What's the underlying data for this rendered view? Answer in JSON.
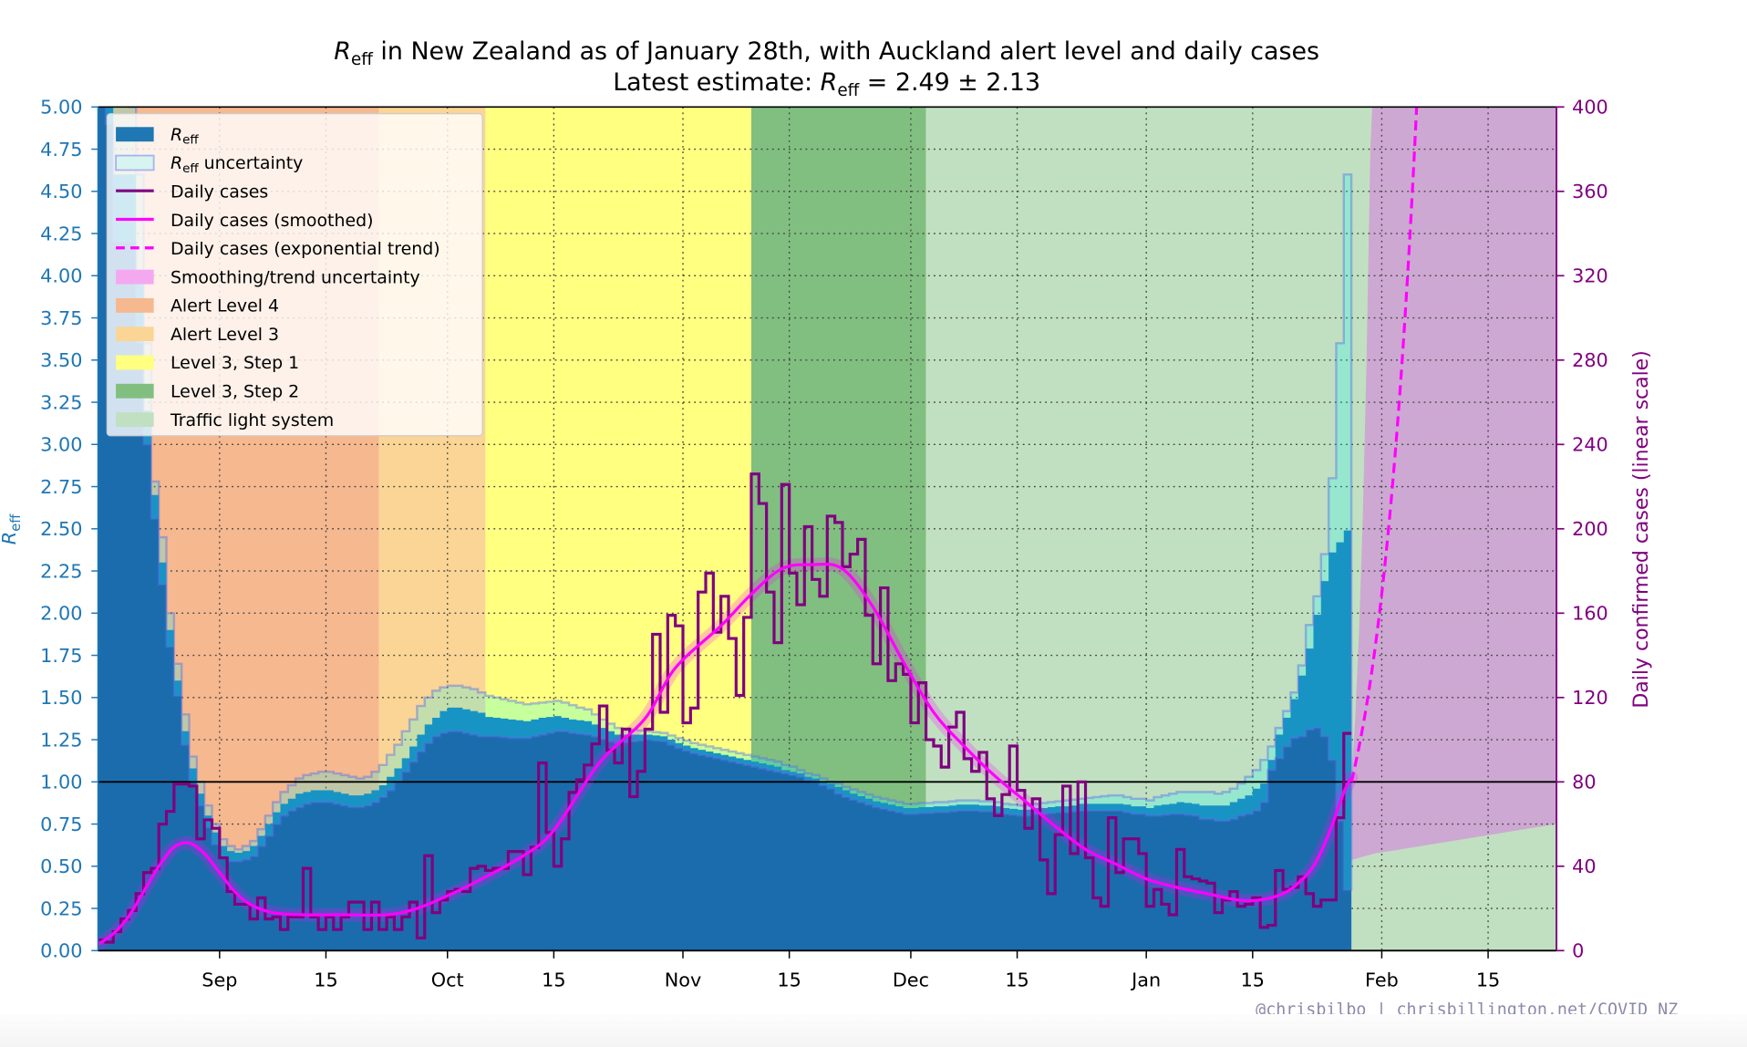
{
  "colors": {
    "reff": "#1f77b4",
    "reff_uncertainty_fill": "rgba(0,255,255,0.22)",
    "reff_uncertainty_edge": "rgba(90,110,230,0.45)",
    "daily_cases": "#800080",
    "smoothed": "#ff00ff",
    "smoothing_uncertainty": "rgba(255,0,255,0.22)",
    "left_axis": "#1f77b4",
    "right_axis": "#800080",
    "footer": "#8a8aaa"
  },
  "chart_data": {
    "type": "line",
    "title": {
      "symbol": "R",
      "sub": "eff",
      "text": " in New Zealand as of January 28th, with Auckland alert level and daily cases"
    },
    "subtitle": {
      "text": "Latest estimate: ",
      "symbol": "R",
      "sub": "eff",
      "value": " = 2.49 ± 2.13"
    },
    "x_axis": {
      "unit": "days since Aug 16",
      "range": [
        0,
        192
      ],
      "ticks": [
        {
          "day": 16,
          "label": "Sep"
        },
        {
          "day": 30,
          "label": "15"
        },
        {
          "day": 46,
          "label": "Oct"
        },
        {
          "day": 60,
          "label": "15"
        },
        {
          "day": 77,
          "label": "Nov"
        },
        {
          "day": 91,
          "label": "15"
        },
        {
          "day": 107,
          "label": "Dec"
        },
        {
          "day": 121,
          "label": "15"
        },
        {
          "day": 138,
          "label": "Jan"
        },
        {
          "day": 152,
          "label": "15"
        },
        {
          "day": 169,
          "label": "Feb"
        },
        {
          "day": 183,
          "label": "15"
        }
      ],
      "grid": true
    },
    "y_left": {
      "label_symbol": "R",
      "label_sub": "eff",
      "range": [
        0,
        5
      ],
      "ticks": [
        "0.00",
        "0.25",
        "0.50",
        "0.75",
        "1.00",
        "1.25",
        "1.50",
        "1.75",
        "2.00",
        "2.25",
        "2.50",
        "2.75",
        "3.00",
        "3.25",
        "3.50",
        "3.75",
        "4.00",
        "4.25",
        "4.50",
        "4.75",
        "5.00"
      ],
      "grid": true
    },
    "y_right": {
      "label": "Daily confirmed cases (linear scale)",
      "range": [
        0,
        400
      ],
      "ticks": [
        "0",
        "40",
        "80",
        "120",
        "160",
        "200",
        "240",
        "280",
        "320",
        "360",
        "400"
      ]
    },
    "reference_line_reff": 1.0,
    "bands": [
      {
        "name": "Alert Level 4",
        "start_day": 0,
        "end_day": 37,
        "color": "#f6b88f"
      },
      {
        "name": "Alert Level 3",
        "start_day": 37,
        "end_day": 51,
        "color": "#fad595"
      },
      {
        "name": "Level 3, Step 1",
        "start_day": 51,
        "end_day": 86,
        "color": "#ffff80"
      },
      {
        "name": "Level 3, Step 2",
        "start_day": 86,
        "end_day": 109,
        "color": "#80bf80"
      },
      {
        "name": "Traffic light system",
        "start_day": 109,
        "end_day": 192,
        "color": "#c1e0c1"
      }
    ],
    "reff": {
      "value": [
        5.0,
        5.0,
        4.6,
        4.6,
        4.6,
        4.0,
        3.2,
        2.7,
        2.3,
        1.9,
        1.6,
        1.3,
        1.08,
        0.93,
        0.8,
        0.7,
        0.62,
        0.59,
        0.58,
        0.59,
        0.62,
        0.68,
        0.75,
        0.82,
        0.87,
        0.9,
        0.93,
        0.94,
        0.95,
        0.95,
        0.95,
        0.94,
        0.93,
        0.92,
        0.92,
        0.93,
        0.95,
        0.98,
        1.03,
        1.08,
        1.14,
        1.21,
        1.28,
        1.34,
        1.38,
        1.42,
        1.44,
        1.44,
        1.43,
        1.42,
        1.41,
        1.385,
        1.38,
        1.375,
        1.37,
        1.365,
        1.36,
        1.37,
        1.38,
        1.385,
        1.39,
        1.38,
        1.37,
        1.365,
        1.36,
        1.34,
        1.32,
        1.3,
        1.28,
        1.28,
        1.28,
        1.28,
        1.28,
        1.275,
        1.27,
        1.25,
        1.23,
        1.215,
        1.2,
        1.19,
        1.18,
        1.17,
        1.16,
        1.15,
        1.14,
        1.13,
        1.12,
        1.11,
        1.1,
        1.09,
        1.07,
        1.06,
        1.05,
        1.03,
        1.02,
        1.0,
        0.99,
        0.97,
        0.95,
        0.93,
        0.915,
        0.9,
        0.885,
        0.875,
        0.865,
        0.855,
        0.845,
        0.845,
        0.85,
        0.85,
        0.855,
        0.855,
        0.86,
        0.865,
        0.865,
        0.865,
        0.86,
        0.86,
        0.855,
        0.845,
        0.84,
        0.835,
        0.835,
        0.845,
        0.845,
        0.85,
        0.855,
        0.855,
        0.86,
        0.87,
        0.87,
        0.87,
        0.87,
        0.87,
        0.87,
        0.865,
        0.855,
        0.855,
        0.845,
        0.86,
        0.865,
        0.87,
        0.88,
        0.875,
        0.87,
        0.86,
        0.86,
        0.86,
        0.86,
        0.88,
        0.9,
        0.92,
        0.96,
        0.99,
        1.13,
        1.28,
        1.38,
        1.49,
        1.63,
        1.79,
        1.99,
        2.19,
        2.36,
        2.42,
        2.49
      ],
      "lower": [
        5.0,
        4.9,
        4.2,
        4.2,
        4.2,
        3.6,
        3.0,
        2.56,
        2.17,
        1.8,
        1.51,
        1.22,
        1.0,
        0.86,
        0.73,
        0.63,
        0.55,
        0.53,
        0.53,
        0.54,
        0.56,
        0.62,
        0.68,
        0.75,
        0.8,
        0.83,
        0.85,
        0.87,
        0.88,
        0.88,
        0.88,
        0.87,
        0.86,
        0.85,
        0.85,
        0.86,
        0.88,
        0.91,
        0.95,
        1.0,
        1.06,
        1.12,
        1.18,
        1.23,
        1.27,
        1.29,
        1.3,
        1.3,
        1.29,
        1.28,
        1.27,
        1.27,
        1.27,
        1.265,
        1.26,
        1.26,
        1.26,
        1.27,
        1.28,
        1.29,
        1.3,
        1.3,
        1.29,
        1.285,
        1.28,
        1.27,
        1.255,
        1.24,
        1.23,
        1.235,
        1.24,
        1.245,
        1.25,
        1.245,
        1.24,
        1.22,
        1.2,
        1.185,
        1.17,
        1.16,
        1.15,
        1.14,
        1.13,
        1.12,
        1.11,
        1.1,
        1.09,
        1.08,
        1.07,
        1.06,
        1.05,
        1.04,
        1.03,
        1.01,
        1.0,
        0.98,
        0.96,
        0.93,
        0.91,
        0.895,
        0.88,
        0.865,
        0.85,
        0.84,
        0.83,
        0.82,
        0.81,
        0.81,
        0.815,
        0.815,
        0.82,
        0.82,
        0.825,
        0.83,
        0.83,
        0.83,
        0.825,
        0.825,
        0.82,
        0.81,
        0.805,
        0.8,
        0.8,
        0.81,
        0.81,
        0.815,
        0.82,
        0.82,
        0.825,
        0.83,
        0.83,
        0.83,
        0.83,
        0.83,
        0.83,
        0.82,
        0.81,
        0.81,
        0.8,
        0.8,
        0.805,
        0.81,
        0.81,
        0.805,
        0.8,
        0.78,
        0.78,
        0.77,
        0.77,
        0.78,
        0.8,
        0.81,
        0.83,
        0.88,
        1.07,
        1.14,
        1.21,
        1.26,
        1.27,
        1.31,
        1.32,
        1.27,
        1.13,
        0.77,
        0.36
      ],
      "upper": [
        5.2,
        5.2,
        5.2,
        5.2,
        5.0,
        4.6,
        3.6,
        2.78,
        2.45,
        2.0,
        1.7,
        1.4,
        1.15,
        1.0,
        0.86,
        0.75,
        0.66,
        0.62,
        0.6,
        0.62,
        0.65,
        0.72,
        0.8,
        0.88,
        0.94,
        0.98,
        1.02,
        1.04,
        1.05,
        1.06,
        1.06,
        1.05,
        1.04,
        1.03,
        1.02,
        1.03,
        1.06,
        1.1,
        1.16,
        1.22,
        1.3,
        1.37,
        1.45,
        1.5,
        1.54,
        1.56,
        1.57,
        1.57,
        1.56,
        1.55,
        1.53,
        1.51,
        1.5,
        1.49,
        1.48,
        1.47,
        1.46,
        1.465,
        1.47,
        1.475,
        1.48,
        1.47,
        1.455,
        1.44,
        1.43,
        1.4,
        1.37,
        1.345,
        1.32,
        1.315,
        1.31,
        1.305,
        1.3,
        1.295,
        1.29,
        1.275,
        1.26,
        1.245,
        1.23,
        1.22,
        1.21,
        1.2,
        1.19,
        1.18,
        1.17,
        1.16,
        1.15,
        1.14,
        1.13,
        1.12,
        1.1,
        1.09,
        1.07,
        1.05,
        1.04,
        1.02,
        1.0,
        0.99,
        0.97,
        0.955,
        0.94,
        0.925,
        0.91,
        0.9,
        0.89,
        0.88,
        0.87,
        0.87,
        0.875,
        0.875,
        0.88,
        0.88,
        0.885,
        0.89,
        0.89,
        0.89,
        0.885,
        0.885,
        0.88,
        0.87,
        0.865,
        0.86,
        0.86,
        0.87,
        0.875,
        0.88,
        0.885,
        0.89,
        0.895,
        0.9,
        0.905,
        0.91,
        0.915,
        0.92,
        0.92,
        0.91,
        0.9,
        0.9,
        0.89,
        0.91,
        0.92,
        0.93,
        0.94,
        0.94,
        0.94,
        0.94,
        0.94,
        0.93,
        0.94,
        0.96,
        0.99,
        1.03,
        1.07,
        1.13,
        1.21,
        1.32,
        1.42,
        1.53,
        1.69,
        1.93,
        2.1,
        2.35,
        2.8,
        3.6,
        4.6
      ]
    },
    "daily_cases": [
      5,
      4,
      9,
      15,
      19,
      27,
      37,
      39,
      60,
      66,
      79,
      79,
      78,
      53,
      62,
      58,
      44,
      28,
      22,
      22,
      15,
      25,
      15,
      16,
      10,
      16,
      16,
      39,
      16,
      10,
      16,
      10,
      16,
      23,
      23,
      10,
      23,
      10,
      16,
      10,
      16,
      23,
      6,
      45,
      18,
      24,
      28,
      29,
      28,
      39,
      40,
      38,
      39,
      39,
      47,
      47,
      36,
      49,
      89,
      56,
      40,
      53,
      75,
      81,
      88,
      98,
      116,
      95,
      89,
      105,
      73,
      85,
      105,
      150,
      113,
      159,
      154,
      108,
      115,
      170,
      179,
      151,
      168,
      148,
      121,
      158,
      226,
      212,
      170,
      146,
      221,
      179,
      164,
      201,
      176,
      168,
      206,
      203,
      182,
      188,
      195,
      159,
      136,
      172,
      128,
      136,
      131,
      108,
      127,
      100,
      97,
      87,
      106,
      113,
      91,
      85,
      94,
      72,
      64,
      74,
      97,
      76,
      58,
      72,
      43,
      27,
      55,
      78,
      46,
      80,
      44,
      25,
      21,
      63,
      37,
      53,
      53,
      46,
      21,
      29,
      22,
      17,
      48,
      35,
      34,
      33,
      32,
      18,
      24,
      28,
      21,
      22,
      25,
      11,
      12,
      38,
      29,
      30,
      35,
      27,
      21,
      24,
      24,
      63,
      103
    ],
    "smoothed": {
      "days": [
        0,
        2,
        4,
        6,
        8,
        10,
        12,
        14,
        16,
        18,
        20,
        23,
        27,
        32,
        38,
        42,
        46,
        50,
        56,
        60,
        66,
        72,
        76,
        82,
        86,
        90,
        94,
        98,
        102,
        106,
        110,
        114,
        118,
        122,
        126,
        130,
        134,
        138,
        142,
        146,
        150,
        153,
        156,
        158,
        160,
        162,
        164,
        165
      ],
      "values": [
        3,
        8,
        16,
        28,
        40,
        49,
        51,
        46,
        37,
        28,
        22,
        18,
        17,
        17,
        17,
        20,
        26,
        33,
        45,
        57,
        89,
        110,
        134,
        154,
        169,
        181,
        183,
        181,
        163,
        137,
        113,
        97,
        83,
        71,
        59,
        48,
        41,
        34,
        30,
        27,
        24,
        24,
        27,
        32,
        40,
        55,
        75,
        82
      ]
    },
    "exponential_trend": {
      "start_day": 165,
      "start_value": 80,
      "doubling_time_days": 3.7,
      "end_day": 174
    },
    "trend_uncertainty": {
      "days": [
        165,
        165.5,
        166,
        166.5,
        167,
        167.5,
        168,
        192
      ],
      "upper": [
        80,
        110,
        150,
        205,
        280,
        380,
        420,
        420
      ],
      "lower": [
        43,
        43.5,
        44,
        44.5,
        45,
        45.5,
        46,
        60
      ]
    },
    "legend": {
      "placement": "top-left",
      "entries": [
        {
          "kind": "patch",
          "symbol": "R",
          "sub": "eff",
          "label": "",
          "style": "reff"
        },
        {
          "kind": "patch",
          "symbol": "R",
          "sub": "eff",
          "label": " uncertainty",
          "style": "reff_unc"
        },
        {
          "kind": "line",
          "label": "Daily cases",
          "style": "cases"
        },
        {
          "kind": "line",
          "label": "Daily cases (smoothed)",
          "style": "smoothed"
        },
        {
          "kind": "line",
          "label": "Daily cases (exponential trend)",
          "style": "trend"
        },
        {
          "kind": "patch",
          "label": "Smoothing/trend uncertainty",
          "style": "smooth_unc"
        },
        {
          "kind": "patch",
          "label": "Alert Level 4",
          "style": "band0"
        },
        {
          "kind": "patch",
          "label": "Alert Level 3",
          "style": "band1"
        },
        {
          "kind": "patch",
          "label": "Level 3, Step 1",
          "style": "band2"
        },
        {
          "kind": "patch",
          "label": "Level 3, Step 2",
          "style": "band3"
        },
        {
          "kind": "patch",
          "label": "Traffic light system",
          "style": "band4"
        }
      ]
    }
  },
  "footer": "@chrisbilbo | chrisbillington.net/COVID_NZ"
}
